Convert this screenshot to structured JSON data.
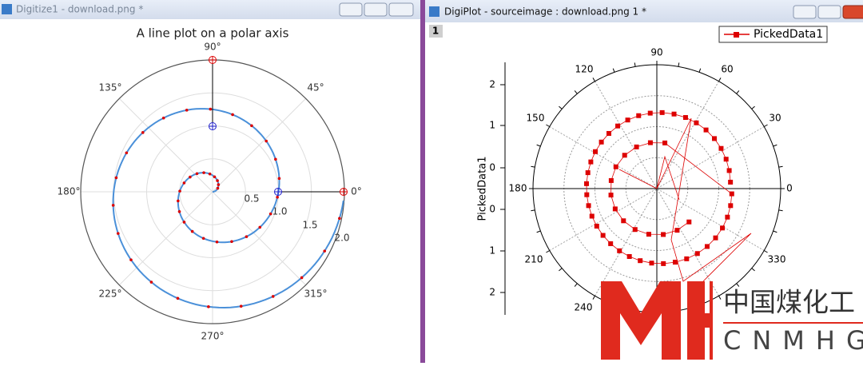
{
  "left_window": {
    "title": "Digitize1 - download.png *",
    "plot_title": "A line plot on a polar axis",
    "angle_labels": [
      "90°",
      "135°",
      "45°",
      "180°",
      "0°",
      "225°",
      "315°",
      "270°"
    ],
    "radial_labels": [
      "0.5",
      "1.0",
      "1.5",
      "2.0"
    ]
  },
  "right_window": {
    "title": "DigiPlot - sourceimage : download.png 1 *",
    "layer": "1",
    "legend": "PickedData1",
    "angle_labels": [
      "90",
      "120",
      "60",
      "150",
      "30",
      "180",
      "0",
      "210",
      "330",
      "240"
    ],
    "y_axis_label": "PickedData1",
    "y_tick_labels": [
      "2",
      "1",
      "0",
      "0",
      "1",
      "2"
    ]
  },
  "watermark": {
    "chinese": "中国煤化工",
    "latin": "CNMHG"
  }
}
